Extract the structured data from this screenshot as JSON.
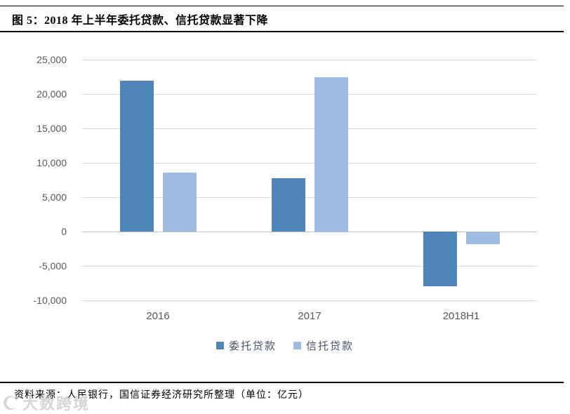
{
  "figure": {
    "title": "图 5：2018 年上半年委托贷款、信托贷款显著下降",
    "source_note": "资料来源：人民银行，国信证券经济研究所整理（单位：亿元）",
    "watermark": "大数跨境"
  },
  "colors": {
    "series_entrusted": "#4e86b9",
    "series_trust": "#9ebce2",
    "gridline": "#d9d9d9",
    "zero_line": "#bfbfbf",
    "axis_text": "#595959",
    "legend_text": "#44546a"
  },
  "chart_data": {
    "type": "bar",
    "title": "",
    "xlabel": "",
    "ylabel": "",
    "unit": "亿元",
    "categories": [
      "2016",
      "2017",
      "2018H1"
    ],
    "series": [
      {
        "name": "委托贷款",
        "color": "#4e86b9",
        "values": [
          21900,
          7800,
          -8000
        ]
      },
      {
        "name": "信托贷款",
        "color": "#9ebce2",
        "values": [
          8600,
          22500,
          -1800
        ]
      }
    ],
    "ylim": [
      -10000,
      25000
    ],
    "ytick_step": 5000,
    "ytick_labels": [
      "25,000",
      "20,000",
      "15,000",
      "10,000",
      "5,000",
      "0",
      "-5,000",
      "-10,000"
    ],
    "grid": true,
    "legend_position": "bottom"
  }
}
